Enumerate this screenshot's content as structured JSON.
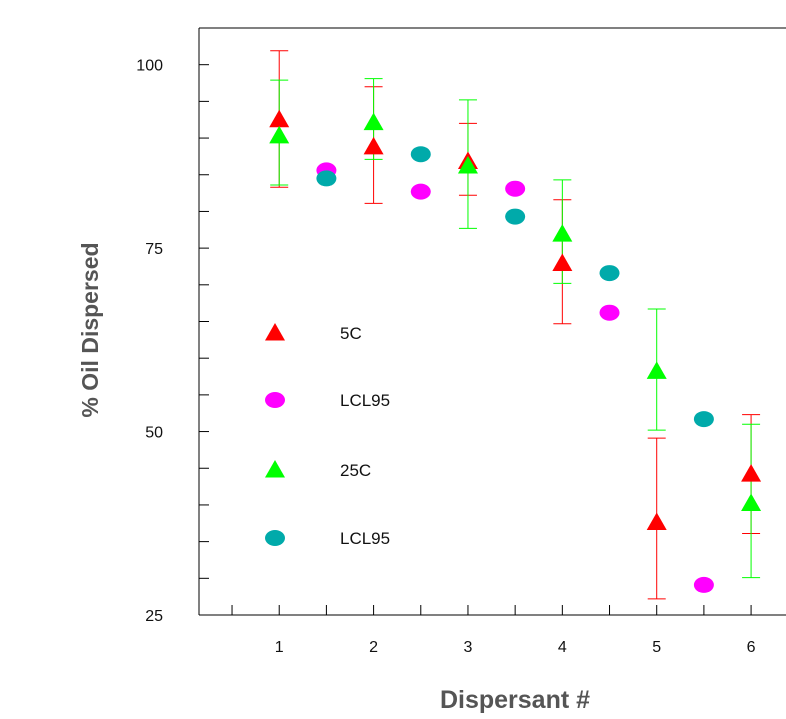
{
  "chart_data": {
    "type": "scatter",
    "xlabel": "Dispersant #",
    "ylabel": "% Oil Dispersed",
    "xlim": [
      0.15,
      6.37
    ],
    "ylim": [
      25,
      105
    ],
    "xticks": [
      1,
      2,
      3,
      4,
      5,
      6
    ],
    "xtick_labels": [
      "1",
      "2",
      "3",
      "4",
      "5",
      "6"
    ],
    "yticks": [
      50,
      75,
      100
    ],
    "ytick_labels": [
      "50",
      "75",
      "100"
    ],
    "grid": false,
    "legend_position": "left-middle",
    "series": [
      {
        "name": "5C",
        "marker": "triangle",
        "color": "#ff0000",
        "x": [
          1,
          2,
          3,
          4,
          5,
          6
        ],
        "y": [
          92.5,
          88.8,
          86.8,
          72.9,
          37.6,
          44.2
        ],
        "yerr_low": [
          83.3,
          81.1,
          82.2,
          64.7,
          27.2,
          36.1
        ],
        "yerr_high": [
          101.9,
          97.0,
          92.0,
          81.6,
          49.1,
          52.3
        ]
      },
      {
        "name": "LCL95",
        "marker": "circle",
        "color": "#ff00ff",
        "x": [
          1.5,
          2.5,
          3.5,
          4.5,
          5.5
        ],
        "y": [
          85.6,
          82.7,
          83.1,
          66.2,
          29.1
        ]
      },
      {
        "name": "25C",
        "marker": "triangle",
        "color": "#00ff00",
        "x": [
          1,
          2,
          3,
          4,
          5,
          6
        ],
        "y": [
          90.3,
          92.1,
          86.2,
          76.9,
          58.2,
          40.2
        ],
        "yerr_low": [
          83.6,
          87.1,
          77.7,
          70.2,
          50.2,
          30.1
        ],
        "yerr_high": [
          97.9,
          98.1,
          95.2,
          84.3,
          66.7,
          51.0
        ]
      },
      {
        "name": "LCL95",
        "marker": "circle",
        "color": "#00aaaa",
        "x": [
          1.5,
          2.5,
          3.5,
          4.5,
          5.5
        ],
        "y": [
          84.5,
          87.8,
          79.3,
          71.6,
          51.7
        ]
      }
    ]
  }
}
